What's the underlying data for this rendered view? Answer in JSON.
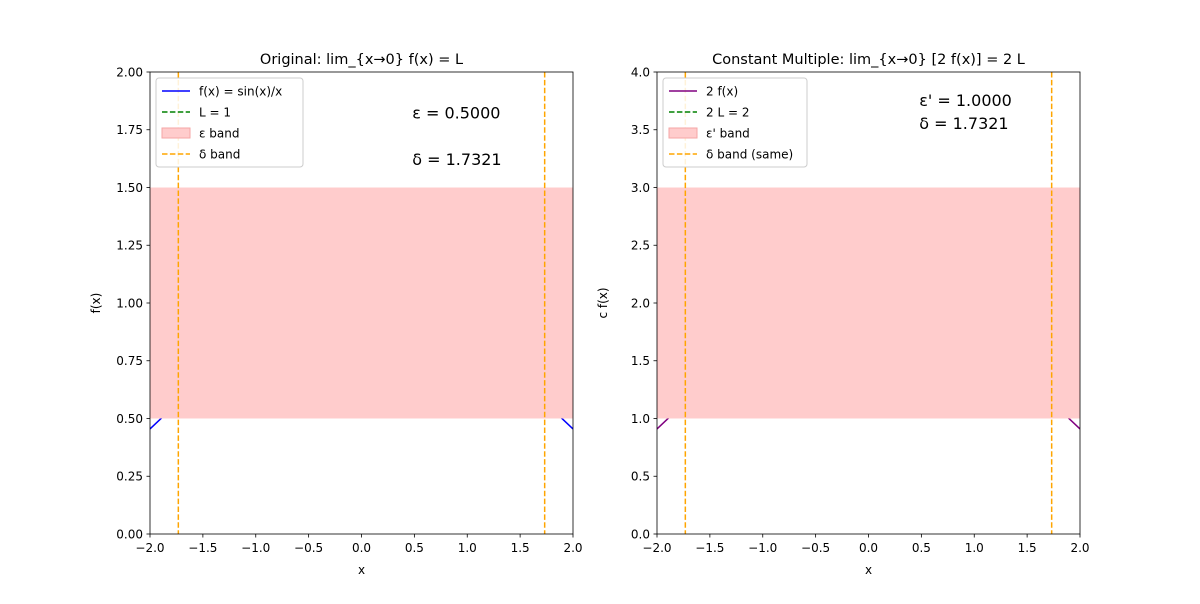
{
  "chart_data": [
    {
      "type": "line",
      "title": "Original: lim_{x→0} f(x) = L",
      "xlabel": "x",
      "ylabel": "f(x)",
      "xlim": [
        -2.0,
        2.0
      ],
      "ylim": [
        0.0,
        2.0
      ],
      "xticks": [
        -2.0,
        -1.5,
        -1.0,
        -0.5,
        0.0,
        0.5,
        1.0,
        1.5,
        2.0
      ],
      "xtick_labels": [
        "−2.0",
        "−1.5",
        "−1.0",
        "−0.5",
        "0.0",
        "0.5",
        "1.0",
        "1.5",
        "2.0"
      ],
      "yticks": [
        0.0,
        0.25,
        0.5,
        0.75,
        1.0,
        1.25,
        1.5,
        1.75,
        2.0
      ],
      "ytick_labels": [
        "0.00",
        "0.25",
        "0.50",
        "0.75",
        "1.00",
        "1.25",
        "1.50",
        "1.75",
        "2.00"
      ],
      "grid": false,
      "legend_position": "top-left",
      "function": "sin(x)/x",
      "multiplier": 1,
      "L": 1.0,
      "band": [
        0.5,
        1.5
      ],
      "delta": 1.7321,
      "series": [
        {
          "name": "f(x) = sin(x)/x",
          "kind": "curve",
          "color": "#0000ff",
          "style": "solid"
        },
        {
          "name": "L = 1",
          "kind": "hline",
          "value": 1.0,
          "color": "#008000",
          "style": "dashed"
        },
        {
          "name": "ε band",
          "kind": "band",
          "range": [
            0.5,
            1.5
          ],
          "color": "#ffcccc",
          "style": "fill"
        },
        {
          "name": "δ band",
          "kind": "vlines",
          "values": [
            -1.7321,
            1.7321
          ],
          "color": "#ffa500",
          "style": "dashed"
        }
      ],
      "annotations": [
        {
          "text": "ε = 0.5000",
          "x": 0.48,
          "y": 1.82
        },
        {
          "text": "δ = 1.7321",
          "x": 0.48,
          "y": 1.62
        }
      ]
    },
    {
      "type": "line",
      "title": "Constant Multiple: lim_{x→0} [2 f(x)] = 2 L",
      "xlabel": "x",
      "ylabel": "c f(x)",
      "xlim": [
        -2.0,
        2.0
      ],
      "ylim": [
        0.0,
        4.0
      ],
      "xticks": [
        -2.0,
        -1.5,
        -1.0,
        -0.5,
        0.0,
        0.5,
        1.0,
        1.5,
        2.0
      ],
      "xtick_labels": [
        "−2.0",
        "−1.5",
        "−1.0",
        "−0.5",
        "0.0",
        "0.5",
        "1.0",
        "1.5",
        "2.0"
      ],
      "yticks": [
        0.0,
        0.5,
        1.0,
        1.5,
        2.0,
        2.5,
        3.0,
        3.5,
        4.0
      ],
      "ytick_labels": [
        "0.0",
        "0.5",
        "1.0",
        "1.5",
        "2.0",
        "2.5",
        "3.0",
        "3.5",
        "4.0"
      ],
      "grid": false,
      "legend_position": "top-left",
      "function": "2 sin(x)/x",
      "multiplier": 2,
      "L": 2.0,
      "band": [
        1.0,
        3.0
      ],
      "delta": 1.7321,
      "series": [
        {
          "name": "2 f(x)",
          "kind": "curve",
          "color": "#800080",
          "style": "solid"
        },
        {
          "name": "2 L = 2",
          "kind": "hline",
          "value": 2.0,
          "color": "#008000",
          "style": "dashed"
        },
        {
          "name": "ε' band",
          "kind": "band",
          "range": [
            1.0,
            3.0
          ],
          "color": "#ffcccc",
          "style": "fill"
        },
        {
          "name": "δ band (same)",
          "kind": "vlines",
          "values": [
            -1.7321,
            1.7321
          ],
          "color": "#ffa500",
          "style": "dashed"
        }
      ],
      "annotations": [
        {
          "text": "ε' = 1.0000",
          "x": 0.48,
          "y": 3.75
        },
        {
          "text": "δ = 1.7321",
          "x": 0.48,
          "y": 3.55
        }
      ]
    }
  ]
}
